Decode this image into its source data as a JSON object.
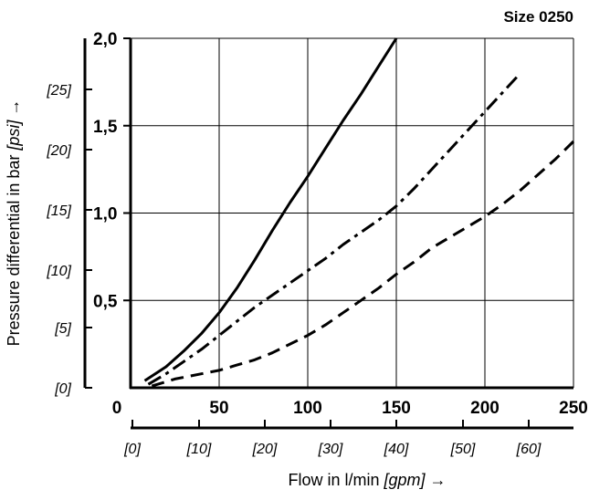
{
  "chart_data": {
    "type": "line",
    "title": "Size 0250",
    "xlabel": {
      "prefix": "Flow in l/min ",
      "unit": "[gpm]",
      "arrow": " →"
    },
    "ylabel": {
      "prefix": "Pressure differential in bar ",
      "unit": "[psi]",
      "arrow": " →"
    },
    "x_primary": {
      "unit": "l/min",
      "ticks": [
        "0",
        "50",
        "100",
        "150",
        "200",
        "250"
      ],
      "lim": [
        0,
        250
      ]
    },
    "x_secondary": {
      "unit": "gpm",
      "ticks": [
        "[0]",
        "[10]",
        "[20]",
        "[30]",
        "[40]",
        "[50]",
        "[60]"
      ]
    },
    "y_primary": {
      "unit": "bar",
      "ticks": [
        "0,5",
        "1,0",
        "1,5",
        "2,0"
      ],
      "lim": [
        0,
        2.0
      ]
    },
    "y_secondary": {
      "unit": "psi",
      "ticks": [
        "[0]",
        "[5]",
        "[10]",
        "[15]",
        "[20]",
        "[25]"
      ]
    },
    "grid": true,
    "series": [
      {
        "style": "solid",
        "color": "#000000",
        "points": [
          [
            8,
            0.04
          ],
          [
            20,
            0.12
          ],
          [
            30,
            0.21
          ],
          [
            40,
            0.31
          ],
          [
            50,
            0.43
          ],
          [
            60,
            0.57
          ],
          [
            70,
            0.73
          ],
          [
            80,
            0.9
          ],
          [
            90,
            1.06
          ],
          [
            100,
            1.21
          ],
          [
            110,
            1.37
          ],
          [
            120,
            1.53
          ],
          [
            130,
            1.68
          ],
          [
            140,
            1.84
          ],
          [
            150,
            2.0
          ]
        ]
      },
      {
        "style": "dash-dot",
        "color": "#000000",
        "points": [
          [
            10,
            0.02
          ],
          [
            20,
            0.08
          ],
          [
            30,
            0.15
          ],
          [
            40,
            0.22
          ],
          [
            50,
            0.3
          ],
          [
            60,
            0.38
          ],
          [
            70,
            0.46
          ],
          [
            80,
            0.53
          ],
          [
            90,
            0.6
          ],
          [
            100,
            0.67
          ],
          [
            110,
            0.74
          ],
          [
            120,
            0.82
          ],
          [
            130,
            0.89
          ],
          [
            140,
            0.96
          ],
          [
            150,
            1.04
          ],
          [
            160,
            1.14
          ],
          [
            170,
            1.25
          ],
          [
            180,
            1.36
          ],
          [
            190,
            1.47
          ],
          [
            200,
            1.58
          ],
          [
            210,
            1.69
          ],
          [
            220,
            1.8
          ]
        ]
      },
      {
        "style": "dashed",
        "color": "#000000",
        "points": [
          [
            12,
            0.01
          ],
          [
            25,
            0.05
          ],
          [
            40,
            0.08
          ],
          [
            50,
            0.1
          ],
          [
            60,
            0.13
          ],
          [
            70,
            0.16
          ],
          [
            80,
            0.2
          ],
          [
            90,
            0.25
          ],
          [
            100,
            0.3
          ],
          [
            110,
            0.36
          ],
          [
            120,
            0.43
          ],
          [
            130,
            0.5
          ],
          [
            140,
            0.57
          ],
          [
            150,
            0.65
          ],
          [
            160,
            0.72
          ],
          [
            170,
            0.8
          ],
          [
            180,
            0.86
          ],
          [
            190,
            0.92
          ],
          [
            200,
            0.98
          ],
          [
            210,
            1.05
          ],
          [
            220,
            1.13
          ],
          [
            230,
            1.22
          ],
          [
            240,
            1.31
          ],
          [
            250,
            1.41
          ]
        ]
      }
    ]
  }
}
